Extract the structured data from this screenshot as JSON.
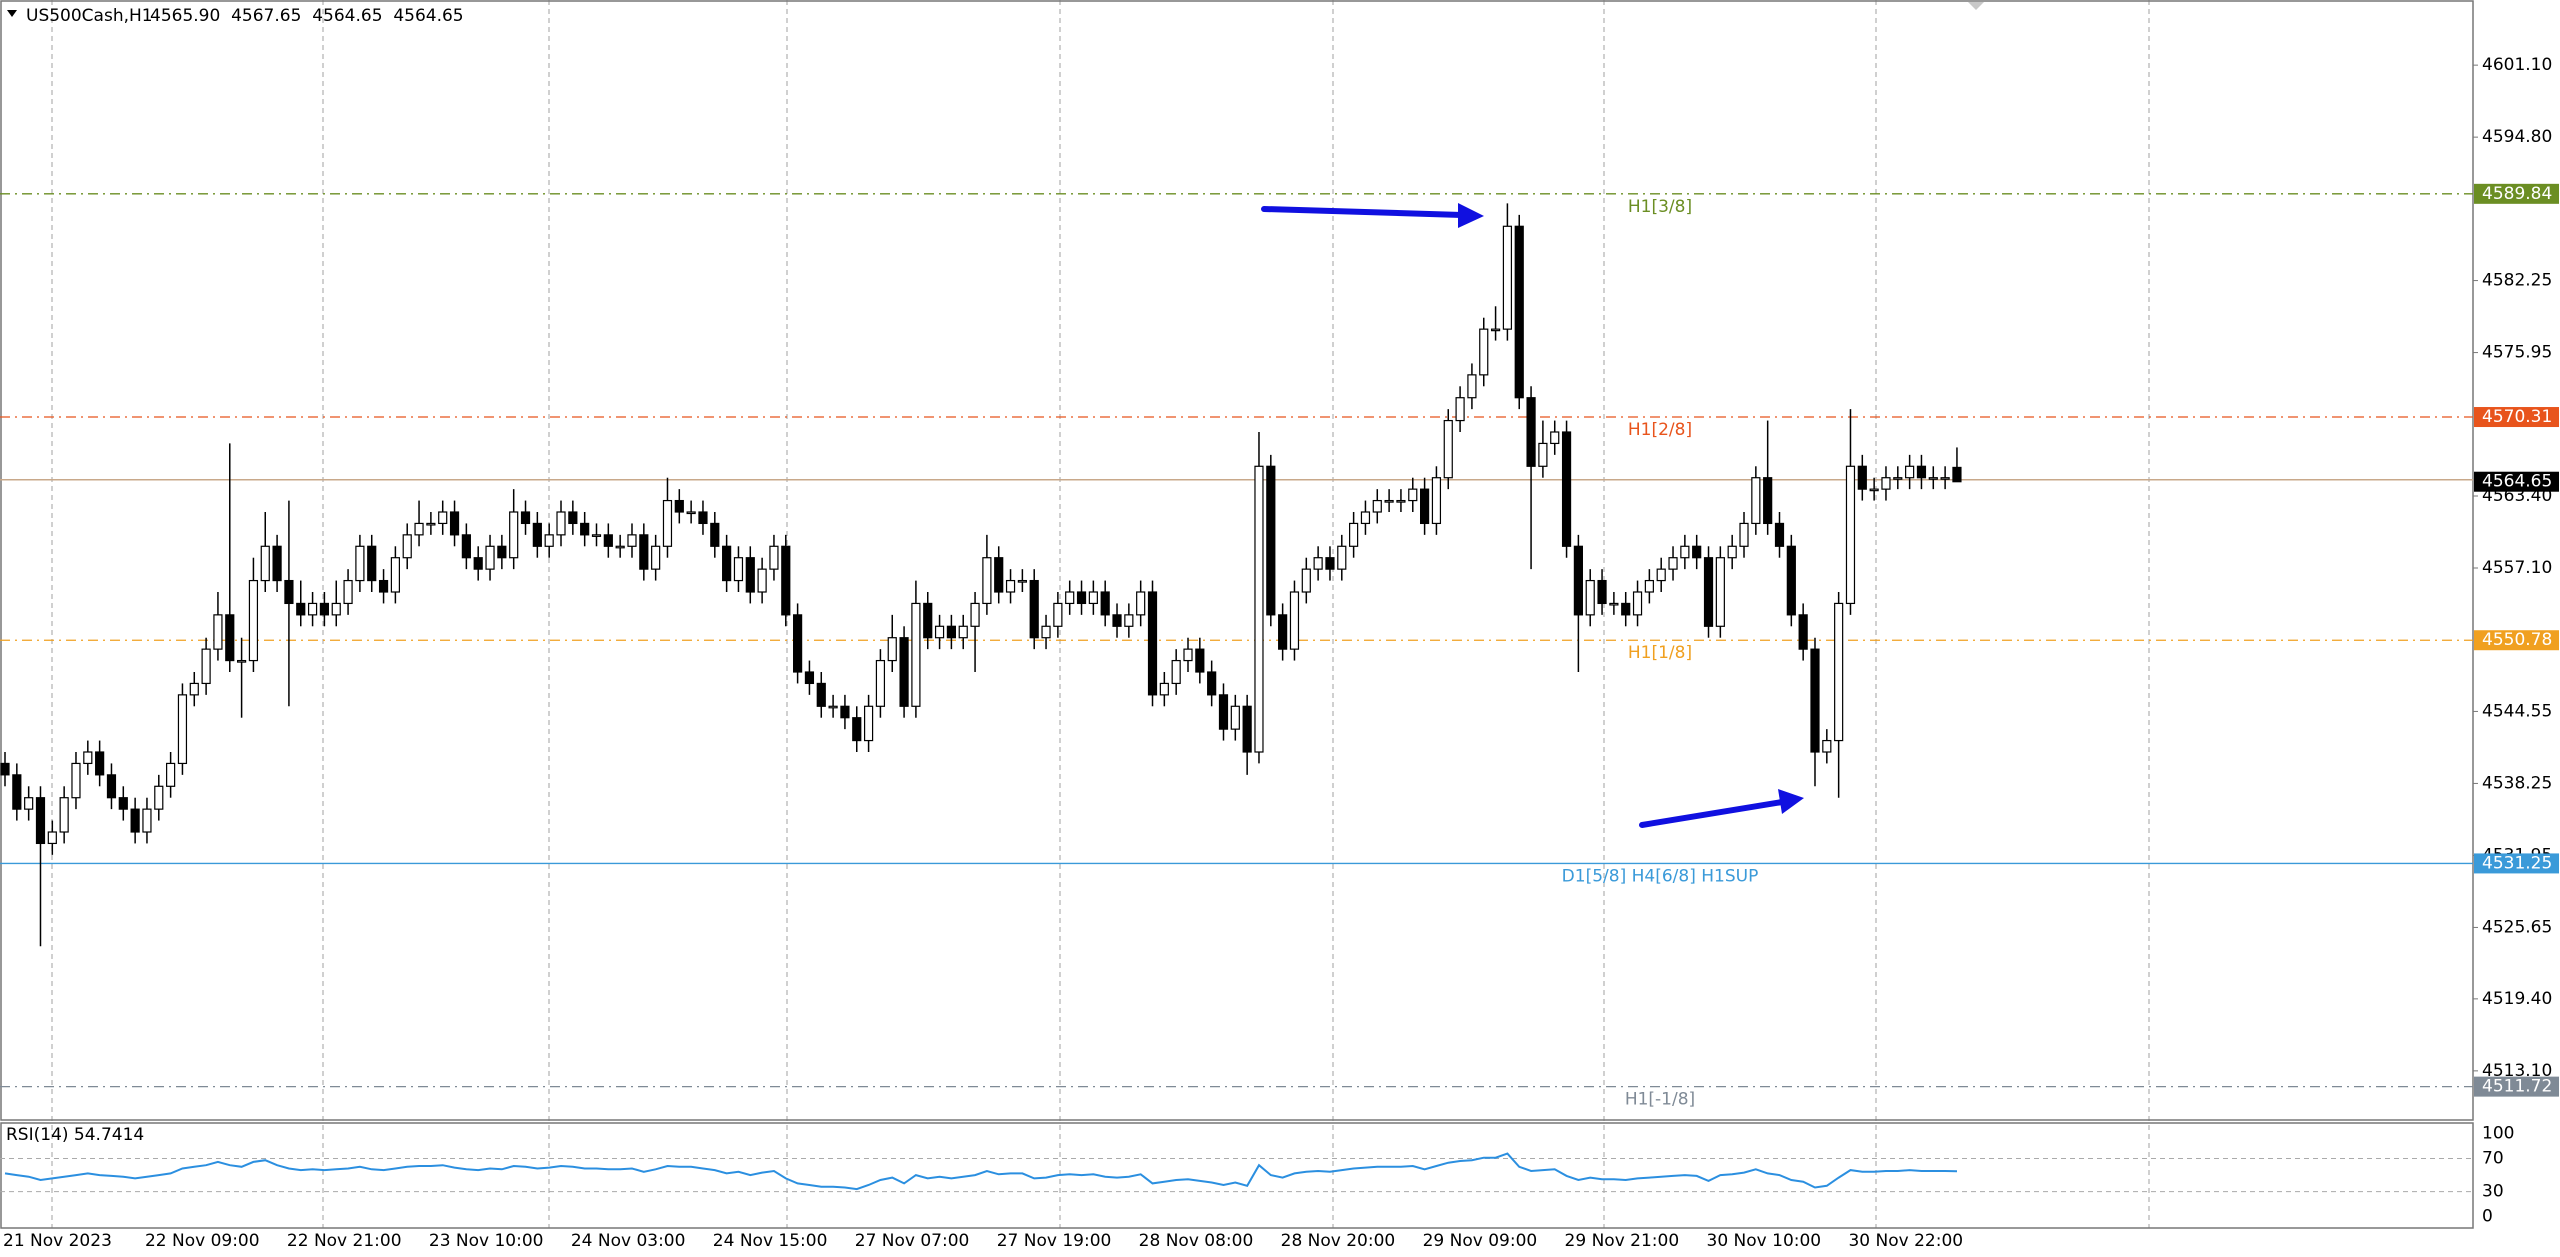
{
  "chart_data": [
    {
      "type": "candlestick",
      "title": "US500Cash,H1",
      "subtitle": "4565.90  4567.65  4564.65  4564.65",
      "categories": [
        "21 Nov 2023",
        null,
        null,
        null,
        null,
        null,
        null,
        null,
        null,
        null,
        null,
        null,
        "22 Nov 09:00",
        null,
        null,
        null,
        null,
        null,
        null,
        null,
        null,
        null,
        null,
        null,
        "22 Nov 21:00",
        null,
        null,
        null,
        null,
        null,
        null,
        null,
        null,
        null,
        null,
        null,
        "23 Nov 10:00",
        null,
        null,
        null,
        null,
        null,
        null,
        null,
        null,
        null,
        null,
        null,
        "24 Nov 03:00",
        null,
        null,
        null,
        null,
        null,
        null,
        null,
        null,
        null,
        null,
        null,
        "24 Nov 15:00",
        null,
        null,
        null,
        null,
        null,
        null,
        null,
        null,
        null,
        null,
        null,
        "27 Nov 07:00",
        null,
        null,
        null,
        null,
        null,
        null,
        null,
        null,
        null,
        null,
        null,
        "27 Nov 19:00",
        null,
        null,
        null,
        null,
        null,
        null,
        null,
        null,
        null,
        null,
        null,
        "28 Nov 08:00",
        null,
        null,
        null,
        null,
        null,
        null,
        null,
        null,
        null,
        null,
        null,
        "28 Nov 20:00",
        null,
        null,
        null,
        null,
        null,
        null,
        null,
        null,
        null,
        null,
        null,
        "29 Nov 09:00",
        null,
        null,
        null,
        null,
        null,
        null,
        null,
        null,
        null,
        null,
        null,
        "29 Nov 21:00",
        null,
        null,
        null,
        null,
        null,
        null,
        null,
        null,
        null,
        null,
        null,
        "30 Nov 10:00",
        null,
        null,
        null,
        null,
        null,
        null,
        null,
        null,
        null,
        null,
        null,
        "30 Nov 22:00",
        null,
        null,
        null,
        null,
        null,
        null,
        null,
        null,
        null
      ],
      "open": [
        4540,
        4539,
        4536,
        4537,
        4533,
        4534,
        4537,
        4540,
        4541,
        4539,
        4537,
        4536,
        4534,
        4536,
        4538,
        4540,
        4546,
        4547,
        4550,
        4553,
        4549,
        4549,
        4556,
        4559,
        4556,
        4554,
        4553,
        4554,
        4553,
        4554,
        4556,
        4559,
        4556,
        4555,
        4558,
        4560,
        4561,
        4561,
        4562,
        4560,
        4558,
        4557,
        4559,
        4558,
        4562,
        4561,
        4559,
        4560,
        4562,
        4561,
        4560,
        4560,
        4559,
        4559,
        4560,
        4557,
        4559,
        4563,
        4562,
        4562,
        4561,
        4559,
        4556,
        4558,
        4555,
        4557,
        4559,
        4553,
        4548,
        4547,
        4545,
        4545,
        4544,
        4542,
        4545,
        4549,
        4551,
        4545,
        4554,
        4551,
        4552,
        4551,
        4552,
        4554,
        4558,
        4555,
        4556,
        4556,
        4551,
        4552,
        4554,
        4555,
        4554,
        4555,
        4553,
        4552,
        4553,
        4555,
        4546,
        4547,
        4549,
        4550,
        4548,
        4546,
        4543,
        4545,
        4541,
        4566,
        4553,
        4550,
        4555,
        4557,
        4558,
        4557,
        4559,
        4561,
        4562,
        4563,
        4563,
        4563,
        4564,
        4561,
        4565,
        4570,
        4572,
        4574,
        4578,
        4578,
        4587,
        4572,
        4566,
        4568,
        4569,
        4559,
        4553,
        4556,
        4554,
        4554,
        4553,
        4555,
        4556,
        4557,
        4558,
        4559,
        4558,
        4552,
        4558,
        4559,
        4561,
        4565,
        4561,
        4559,
        4553,
        4550,
        4541,
        4542,
        4554,
        4566,
        4564,
        4564,
        4565,
        4565,
        4566,
        4565,
        4565,
        4565.9
      ],
      "high": [
        4541,
        4540,
        4538,
        4538,
        4535,
        4538,
        4541,
        4542,
        4542,
        4540,
        4538,
        4537,
        4537,
        4539,
        4541,
        4547,
        4548,
        4551,
        4555,
        4568,
        4551,
        4558,
        4562,
        4560,
        4563,
        4556,
        4555,
        4555,
        4556,
        4557,
        4560,
        4560,
        4557,
        4559,
        4561,
        4563,
        4562,
        4563,
        4563,
        4561,
        4559,
        4560,
        4560,
        4564,
        4563,
        4562,
        4561,
        4563,
        4563,
        4562,
        4561,
        4561,
        4560,
        4561,
        4561,
        4560,
        4565,
        4564,
        4563,
        4563,
        4562,
        4560,
        4559,
        4559,
        4558,
        4560,
        4560,
        4554,
        4549,
        4548,
        4546,
        4546,
        4545,
        4546,
        4550,
        4553,
        4552,
        4556,
        4555,
        4553,
        4553,
        4553,
        4555,
        4560,
        4559,
        4557,
        4557,
        4557,
        4553,
        4555,
        4556,
        4556,
        4556,
        4556,
        4554,
        4554,
        4556,
        4556,
        4548,
        4550,
        4551,
        4551,
        4549,
        4547,
        4546,
        4546,
        4569,
        4567,
        4554,
        4556,
        4558,
        4559,
        4559,
        4560,
        4562,
        4563,
        4564,
        4564,
        4564,
        4565,
        4565,
        4566,
        4571,
        4573,
        4575,
        4579,
        4580,
        4589,
        4588,
        4573,
        4570,
        4570,
        4570,
        4560,
        4557,
        4557,
        4555,
        4555,
        4556,
        4557,
        4558,
        4559,
        4560,
        4560,
        4559,
        4559,
        4560,
        4562,
        4566,
        4570,
        4562,
        4560,
        4554,
        4551,
        4543,
        4555,
        4571,
        4567,
        4565,
        4566,
        4566,
        4567,
        4567,
        4566,
        4566,
        4567.65
      ],
      "low": [
        4538,
        4535,
        4535,
        4524,
        4532,
        4533,
        4536,
        4539,
        4538,
        4536,
        4535,
        4533,
        4533,
        4535,
        4537,
        4539,
        4545,
        4546,
        4549,
        4548,
        4544,
        4548,
        4555,
        4555,
        4545,
        4552,
        4552,
        4552,
        4552,
        4553,
        4555,
        4555,
        4554,
        4554,
        4557,
        4559,
        4560,
        4560,
        4559,
        4557,
        4556,
        4556,
        4557,
        4557,
        4560,
        4558,
        4558,
        4559,
        4560,
        4559,
        4559,
        4558,
        4558,
        4558,
        4556,
        4556,
        4558,
        4561,
        4561,
        4560,
        4558,
        4555,
        4555,
        4554,
        4554,
        4556,
        4552,
        4547,
        4546,
        4544,
        4544,
        4543,
        4541,
        4541,
        4544,
        4548,
        4544,
        4544,
        4550,
        4550,
        4550,
        4550,
        4548,
        4553,
        4554,
        4554,
        4555,
        4550,
        4550,
        4551,
        4553,
        4553,
        4553,
        4552,
        4551,
        4551,
        4552,
        4545,
        4545,
        4546,
        4548,
        4547,
        4545,
        4542,
        4542,
        4539,
        4540,
        4552,
        4549,
        4549,
        4554,
        4556,
        4556,
        4556,
        4558,
        4560,
        4561,
        4562,
        4562,
        4562,
        4560,
        4560,
        4564,
        4569,
        4571,
        4573,
        4577,
        4577,
        4571,
        4557,
        4565,
        4567,
        4558,
        4548,
        4552,
        4553,
        4553,
        4552,
        4552,
        4554,
        4555,
        4556,
        4557,
        4557,
        4551,
        4551,
        4557,
        4558,
        4560,
        4560,
        4558,
        4552,
        4549,
        4538,
        4540,
        4537,
        4553,
        4563,
        4563,
        4563,
        4564,
        4564,
        4564,
        4564,
        4564,
        4564.65
      ],
      "close": [
        4539,
        4536,
        4537,
        4533,
        4534,
        4537,
        4540,
        4541,
        4539,
        4537,
        4536,
        4534,
        4536,
        4538,
        4540,
        4546,
        4547,
        4550,
        4553,
        4549,
        4549,
        4556,
        4559,
        4556,
        4554,
        4553,
        4554,
        4553,
        4554,
        4556,
        4559,
        4556,
        4555,
        4558,
        4560,
        4561,
        4561,
        4562,
        4560,
        4558,
        4557,
        4559,
        4558,
        4562,
        4561,
        4559,
        4560,
        4562,
        4561,
        4560,
        4560,
        4559,
        4559,
        4560,
        4557,
        4559,
        4563,
        4562,
        4562,
        4561,
        4559,
        4556,
        4558,
        4555,
        4557,
        4559,
        4553,
        4548,
        4547,
        4545,
        4545,
        4544,
        4542,
        4545,
        4549,
        4551,
        4545,
        4554,
        4551,
        4552,
        4551,
        4552,
        4554,
        4558,
        4555,
        4556,
        4556,
        4551,
        4552,
        4554,
        4555,
        4554,
        4555,
        4553,
        4552,
        4553,
        4555,
        4546,
        4547,
        4549,
        4550,
        4548,
        4546,
        4543,
        4545,
        4541,
        4566,
        4553,
        4550,
        4555,
        4557,
        4558,
        4557,
        4559,
        4561,
        4562,
        4563,
        4563,
        4563,
        4564,
        4561,
        4565,
        4570,
        4572,
        4574,
        4578,
        4578,
        4587,
        4572,
        4566,
        4568,
        4569,
        4559,
        4553,
        4556,
        4554,
        4554,
        4553,
        4555,
        4556,
        4557,
        4558,
        4559,
        4558,
        4552,
        4558,
        4559,
        4561,
        4565,
        4561,
        4559,
        4553,
        4550,
        4541,
        4542,
        4554,
        4566,
        4564,
        4564,
        4565,
        4565,
        4566,
        4565,
        4565,
        4565,
        4564.65
      ],
      "up_color": "#ffffff",
      "down_color": "#000000",
      "wick_color": "#000000",
      "ylim": [
        4508.8,
        4606.8
      ],
      "yticks": [
        {
          "value": 4601.1,
          "label": "4601.10"
        },
        {
          "value": 4594.8,
          "label": "4594.80"
        },
        4582.25,
        4575.95,
        {
          "value": 4563.4,
          "label": "4563.40"
        },
        {
          "value": 4557.1,
          "label": "4557.10"
        },
        4544.55,
        4538.25,
        4531.95,
        4525.65,
        {
          "value": 4519.4,
          "label": "4519.40"
        },
        {
          "value": 4513.1,
          "label": "4513.10"
        }
      ],
      "levels": [
        {
          "name": "H1[3/8]",
          "value": 4589.84,
          "color": "#6b8e23",
          "style": "dashdot"
        },
        {
          "name": "H1[2/8]",
          "value": 4570.31,
          "color": "#e8541c",
          "style": "dashdot"
        },
        {
          "name": "H1[1/8]",
          "value": 4550.78,
          "color": "#f0a020",
          "style": "dashdot"
        },
        {
          "name": "D1[5/8] H4[6/8] H1SUP",
          "value": 4531.25,
          "color": "#3a9ad9",
          "style": "solid"
        },
        {
          "name": "H1[-1/8]",
          "value": 4511.72,
          "color": "#7f8a96",
          "style": "dashdot"
        }
      ],
      "last_price": 4564.65,
      "last_price_color": "#000000",
      "last_price_line_color": "#c8a88a"
    },
    {
      "type": "line",
      "title": "RSI(14) 54.7414",
      "color": "#2b8fe0",
      "values": [
        52,
        50,
        48,
        44,
        46,
        48,
        50,
        52,
        50,
        49,
        48,
        46,
        48,
        50,
        52,
        58,
        60,
        62,
        66,
        62,
        60,
        66,
        68,
        62,
        58,
        56,
        57,
        56,
        57,
        58,
        60,
        57,
        56,
        58,
        60,
        61,
        61,
        62,
        59,
        57,
        56,
        58,
        57,
        61,
        60,
        58,
        59,
        61,
        60,
        58,
        58,
        57,
        57,
        58,
        54,
        57,
        61,
        60,
        60,
        58,
        56,
        52,
        54,
        50,
        53,
        55,
        46,
        40,
        38,
        36,
        36,
        35,
        33,
        38,
        44,
        47,
        40,
        50,
        46,
        48,
        46,
        48,
        50,
        55,
        51,
        52,
        52,
        46,
        47,
        50,
        51,
        50,
        51,
        48,
        47,
        48,
        51,
        40,
        42,
        44,
        45,
        43,
        41,
        38,
        41,
        37,
        62,
        50,
        47,
        52,
        54,
        55,
        54,
        56,
        58,
        59,
        60,
        60,
        60,
        61,
        57,
        61,
        65,
        67,
        68,
        71,
        71,
        76,
        60,
        55,
        56,
        57,
        49,
        44,
        47,
        45,
        45,
        44,
        46,
        47,
        48,
        49,
        50,
        49,
        43,
        50,
        51,
        53,
        57,
        52,
        50,
        44,
        42,
        35,
        37,
        47,
        56,
        54,
        54,
        55,
        55,
        56,
        55,
        55,
        55,
        54.7414
      ],
      "ylim": [
        -14,
        113
      ],
      "yticks": [
        100,
        70,
        30,
        0
      ]
    }
  ]
}
